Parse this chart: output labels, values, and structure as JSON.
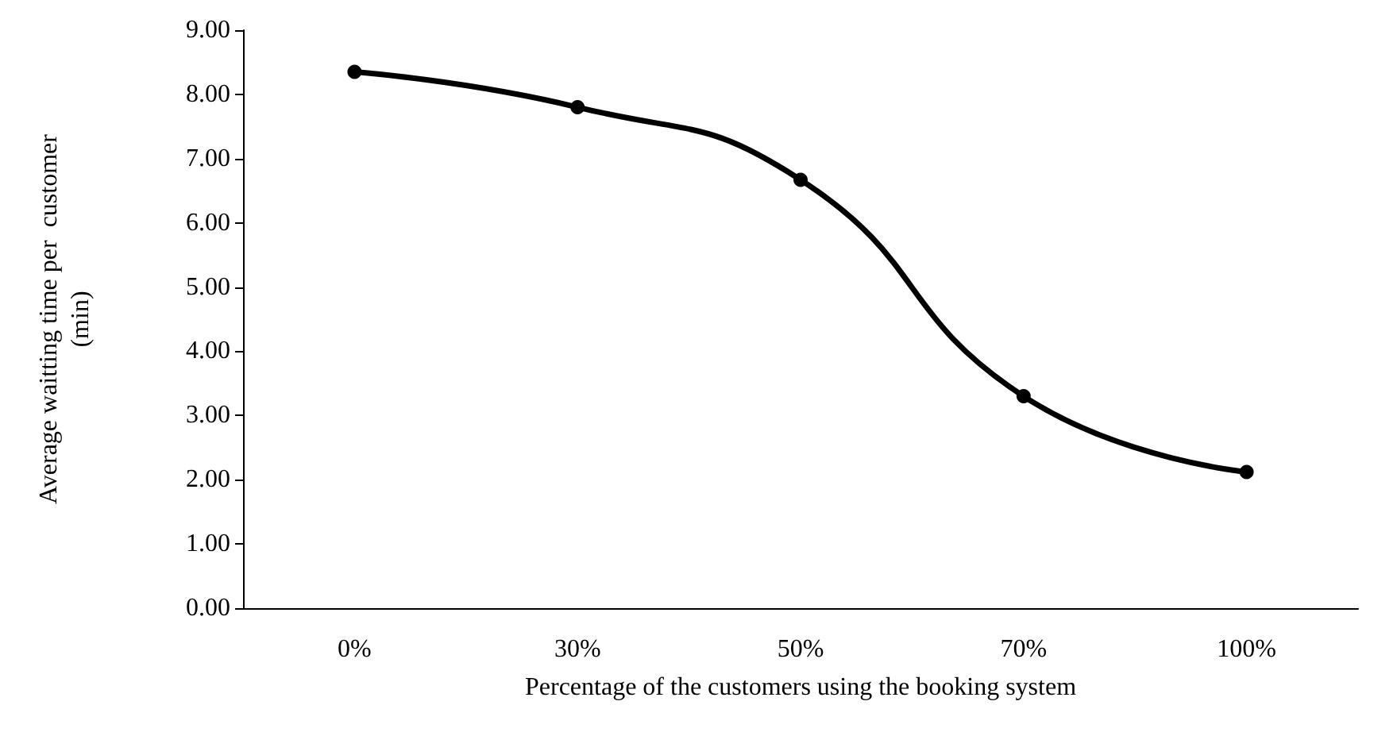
{
  "chart_data": {
    "type": "line",
    "xlabel": "Percentage of the customers using the booking system",
    "ylabel": "Average waitting time per  customer\n(min)",
    "categories": [
      "0%",
      "30%",
      "50%",
      "70%",
      "100%"
    ],
    "series": [
      {
        "color": "#000000",
        "values": [
          8.35,
          7.8,
          6.67,
          3.3,
          2.12
        ]
      }
    ],
    "ylim": [
      0,
      9
    ],
    "yticks": [
      {
        "value": 0,
        "label": "0.00"
      },
      {
        "value": 1,
        "label": "1.00"
      },
      {
        "value": 2,
        "label": "2.00"
      },
      {
        "value": 3,
        "label": "3.00"
      },
      {
        "value": 4,
        "label": "4.00"
      },
      {
        "value": 5,
        "label": "5.00"
      },
      {
        "value": 6,
        "label": "6.00"
      },
      {
        "value": 7,
        "label": "7.00"
      },
      {
        "value": 8,
        "label": "8.00"
      },
      {
        "value": 9,
        "label": "9.00"
      }
    ],
    "grid": false,
    "marker": "circle",
    "line_style": "solid"
  }
}
